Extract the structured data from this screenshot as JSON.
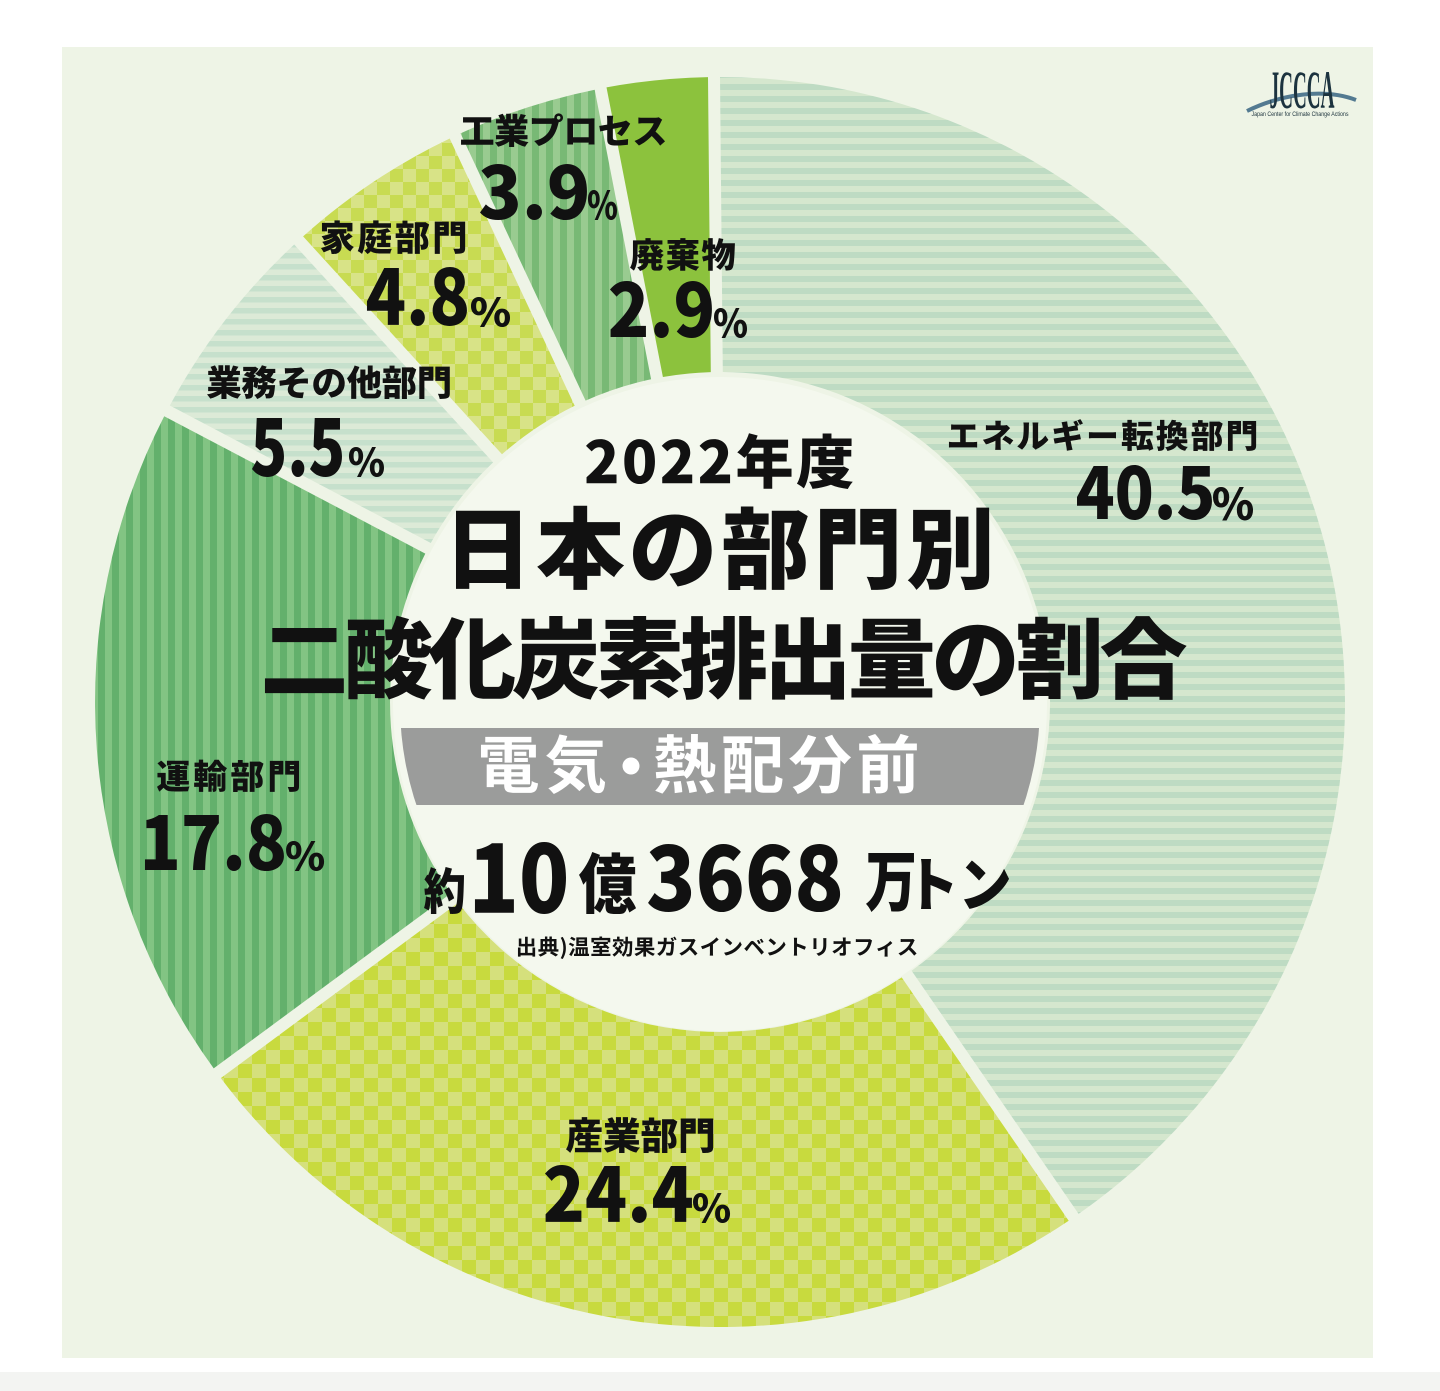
{
  "logo": {
    "text": "JCCCA",
    "tagline": "Japan Center for Climate Change Actions"
  },
  "center": {
    "title_line1": "2022年度",
    "title_line2": "日本の部門別",
    "title_line3": "二酸化炭素排出量の割合",
    "band_label": "電気・熱配分前",
    "band_left": "電気",
    "band_right": "熱配分前",
    "total": {
      "prefix": "約",
      "oku_value": "10",
      "oku_unit": "億",
      "man_value": "3668",
      "man_unit": "万",
      "ton_unit": "トン",
      "composed": "約10億3668万トン"
    },
    "source": "出典)温室効果ガスインベントリオフィス"
  },
  "slices": [
    {
      "label": "エネルギー転換部門",
      "value": 40.5,
      "value_text": "40.5",
      "percent_sign": "%",
      "display": "40.5%",
      "pattern": "h-stripes",
      "color_main": "#bedbc3",
      "color_light": "#d5e7ce"
    },
    {
      "label": "産業部門",
      "value": 24.4,
      "value_text": "24.4",
      "percent_sign": "%",
      "display": "24.4%",
      "pattern": "checker",
      "color_main": "#c8da3e",
      "color_light": "#d5e07c"
    },
    {
      "label": "運輸部門",
      "value": 17.8,
      "value_text": "17.8",
      "percent_sign": "%",
      "display": "17.8%",
      "pattern": "v-stripes",
      "color_main": "#63b06c",
      "color_light": "#82c483"
    },
    {
      "label": "業務その他部門",
      "value": 5.5,
      "value_text": "5.5",
      "percent_sign": "%",
      "display": "5.5%",
      "pattern": "h-stripes",
      "color_main": "#c6e0cc",
      "color_light": "#dcead7"
    },
    {
      "label": "家庭部門",
      "value": 4.8,
      "value_text": "4.8",
      "percent_sign": "%",
      "display": "4.8%",
      "pattern": "checker",
      "color_main": "#c8db52",
      "color_light": "#d8e387"
    },
    {
      "label": "工業プロセス",
      "value": 3.9,
      "value_text": "3.9",
      "percent_sign": "%",
      "display": "3.9%",
      "pattern": "v-stripes",
      "color_main": "#78b975",
      "color_light": "#99cb90"
    },
    {
      "label": "廃棄物",
      "value": 2.9,
      "value_text": "2.9",
      "percent_sign": "%",
      "display": "2.9%",
      "pattern": "solid",
      "color_main": "#8cc23d",
      "color_light": "#8cc23d"
    }
  ],
  "chart_data": {
    "type": "pie",
    "variant": "donut",
    "title": "2022年度 日本の部門別 二酸化炭素排出量の割合",
    "subtitle": "電気・熱配分前",
    "total": "約10億3668万トン",
    "source": "出典)温室効果ガスインベントリオフィス",
    "unit": "%",
    "categories": [
      "エネルギー転換部門",
      "産業部門",
      "運輸部門",
      "業務その他部門",
      "家庭部門",
      "工業プロセス",
      "廃棄物"
    ],
    "values": [
      40.5,
      24.4,
      17.8,
      5.5,
      4.8,
      3.9,
      2.9
    ],
    "start_angle_deg": 0,
    "direction": "clockwise",
    "legend_position": "labels-around-ring",
    "colors": {
      "panel_background": "#eef4e6",
      "hole": "#f4f8ee",
      "band": "#9b9c9b",
      "text": "#111111",
      "band_text": "#ffffff"
    }
  }
}
